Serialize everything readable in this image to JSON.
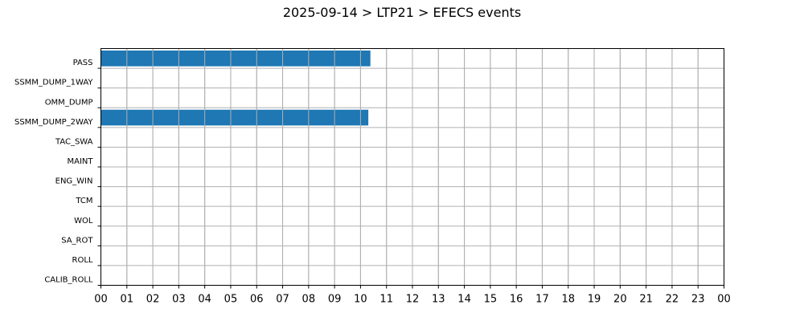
{
  "chart_data": {
    "type": "bar",
    "orientation": "horizontal",
    "title": "2025-09-14 > LTP21 > EFECS events",
    "xlabel": "",
    "ylabel": "",
    "categories": [
      "PASS",
      "SSMM_DUMP_1WAY",
      "OMM_DUMP",
      "SSMM_DUMP_2WAY",
      "TAC_SWA",
      "MAINT",
      "ENG_WIN",
      "TCM",
      "WOL",
      "SA_ROT",
      "ROLL",
      "CALIB_ROLL"
    ],
    "x_ticks": [
      "00",
      "01",
      "02",
      "03",
      "04",
      "05",
      "06",
      "07",
      "08",
      "09",
      "10",
      "11",
      "12",
      "13",
      "14",
      "15",
      "16",
      "17",
      "18",
      "19",
      "20",
      "21",
      "22",
      "23",
      "00"
    ],
    "xlim_hours": [
      0,
      24
    ],
    "bars": [
      {
        "category": "PASS",
        "start_hour": 0,
        "end_hour": 10.38
      },
      {
        "category": "SSMM_DUMP_2WAY",
        "start_hour": 0,
        "end_hour": 10.3
      }
    ],
    "grid": true,
    "colors": {
      "bar": "#1f77b4",
      "grid": "#b0b0b0",
      "axis": "#000000"
    }
  }
}
